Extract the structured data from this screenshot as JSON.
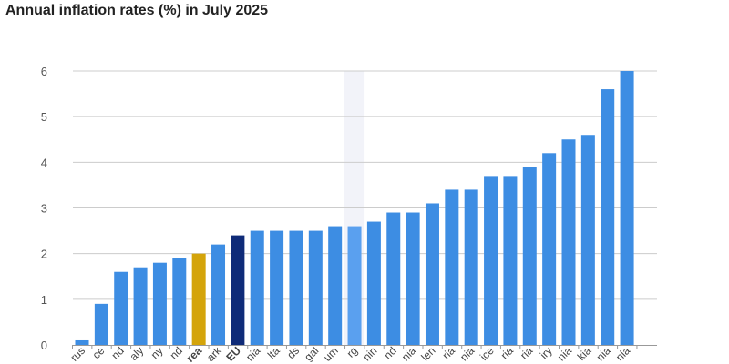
{
  "chart_data": {
    "type": "bar",
    "title": "Annual inflation rates (%) in July 2025",
    "xlabel": "",
    "ylabel": "",
    "ylim": [
      0,
      6
    ],
    "yticks": [
      0,
      1,
      2,
      3,
      4,
      5,
      6
    ],
    "grid": true,
    "categories": [
      "Cyprus",
      "France",
      "Ireland",
      "Italy",
      "Germany",
      "Finland",
      "Euro area",
      "Denmark",
      "EU",
      "Lithuania",
      "Malta",
      "Netherlands",
      "Portugal",
      "Belgium",
      "Luxembourg",
      "Latvia",
      "Poland",
      "Czechia",
      "Sweden",
      "Bulgaria",
      "Slovenia",
      "Greece",
      "Croatia",
      "Austria",
      "Hungary",
      "Estonia",
      "Slovakia",
      "Romania",
      "Estonia"
    ],
    "tick_labels": [
      "rus",
      "ce",
      "nd",
      "aly",
      "ny",
      "nd",
      "rea",
      "ark",
      "EU",
      "nia",
      "lta",
      "ds",
      "gal",
      "um",
      "rg",
      "nin",
      "nd",
      "nia",
      "len",
      "ria",
      "nia",
      "ice",
      "ria",
      "ria",
      "iry",
      "nia",
      "kia",
      "nia",
      "nia"
    ],
    "tick_labels_bold": [
      6,
      8
    ],
    "values": [
      0.1,
      0.9,
      1.6,
      1.7,
      1.8,
      1.9,
      2.0,
      2.2,
      2.4,
      2.5,
      2.5,
      2.5,
      2.5,
      2.6,
      2.6,
      2.7,
      2.9,
      2.9,
      3.1,
      3.4,
      3.4,
      3.7,
      3.7,
      3.9,
      4.2,
      4.5,
      4.6,
      5.6,
      6.0
    ],
    "highlight_column": 14,
    "colors": {
      "default": "#3d8de3",
      "euro_area": "#d4a40a",
      "eu": "#0f2b78",
      "hovered": "#5aa0ef",
      "hover_band": "#f2f3f9",
      "grid": "#cccccc",
      "axis": "#999999"
    },
    "bar_colors": {
      "6": "euro_area",
      "8": "eu",
      "14": "hovered"
    }
  }
}
